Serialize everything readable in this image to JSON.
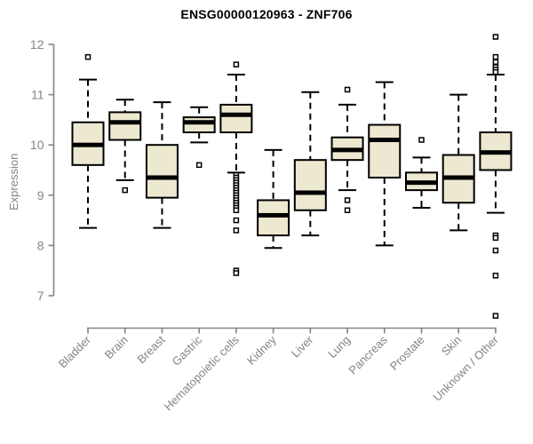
{
  "chart_data": {
    "type": "boxplot",
    "title": "ENSG00000120963 - ZNF706",
    "ylabel": "Expression",
    "xlabel": "",
    "yticks": [
      7,
      8,
      9,
      10,
      11,
      12
    ],
    "ylim": [
      7,
      12
    ],
    "grid": false,
    "legend": "none",
    "categories": [
      "Bladder",
      "Brain",
      "Breast",
      "Gastric",
      "Hematopoietic cells",
      "Kidney",
      "Liver",
      "Lung",
      "Pancreas",
      "Prostate",
      "Skin",
      "Unknown / Other"
    ],
    "boxes": [
      {
        "category": "Bladder",
        "low": 8.35,
        "q1": 9.6,
        "median": 10.0,
        "q3": 10.45,
        "high": 11.3,
        "outliers": [
          11.75
        ]
      },
      {
        "category": "Brain",
        "low": 9.3,
        "q1": 10.1,
        "median": 10.45,
        "q3": 10.65,
        "high": 10.9,
        "outliers": [
          9.1
        ]
      },
      {
        "category": "Breast",
        "low": 8.35,
        "q1": 8.95,
        "median": 9.35,
        "q3": 10.0,
        "high": 10.85,
        "outliers": []
      },
      {
        "category": "Gastric",
        "low": 10.05,
        "q1": 10.25,
        "median": 10.45,
        "q3": 10.55,
        "high": 10.75,
        "outliers": [
          9.6
        ]
      },
      {
        "category": "Hematopoietic cells",
        "low": 9.45,
        "q1": 10.25,
        "median": 10.6,
        "q3": 10.8,
        "high": 11.4,
        "outliers": [
          11.6,
          9.4,
          9.35,
          9.3,
          9.25,
          9.2,
          9.15,
          9.1,
          9.05,
          9.0,
          8.95,
          8.9,
          8.85,
          8.8,
          8.75,
          8.7,
          8.5,
          8.3,
          7.5,
          7.45
        ]
      },
      {
        "category": "Kidney",
        "low": 7.95,
        "q1": 8.2,
        "median": 8.6,
        "q3": 8.9,
        "high": 9.9,
        "outliers": []
      },
      {
        "category": "Liver",
        "low": 8.2,
        "q1": 8.7,
        "median": 9.05,
        "q3": 9.7,
        "high": 11.05,
        "outliers": []
      },
      {
        "category": "Lung",
        "low": 9.1,
        "q1": 9.7,
        "median": 9.9,
        "q3": 10.15,
        "high": 10.8,
        "outliers": [
          11.1,
          8.9,
          8.7
        ]
      },
      {
        "category": "Pancreas",
        "low": 8.0,
        "q1": 9.35,
        "median": 10.1,
        "q3": 10.4,
        "high": 11.25,
        "outliers": []
      },
      {
        "category": "Prostate",
        "low": 8.75,
        "q1": 9.1,
        "median": 9.25,
        "q3": 9.45,
        "high": 9.75,
        "outliers": [
          10.1
        ]
      },
      {
        "category": "Skin",
        "low": 8.3,
        "q1": 8.85,
        "median": 9.35,
        "q3": 9.8,
        "high": 11.0,
        "outliers": []
      },
      {
        "category": "Unknown / Other",
        "low": 8.65,
        "q1": 9.5,
        "median": 9.85,
        "q3": 10.25,
        "high": 11.4,
        "outliers": [
          12.15,
          11.75,
          11.65,
          11.55,
          11.5,
          11.45,
          8.2,
          8.15,
          7.9,
          7.4,
          6.6
        ]
      }
    ],
    "colors": {
      "box_fill": "#EDE8D0",
      "box_border": "#000000",
      "median": "#000000",
      "whisker": "#000000",
      "outlier_fill": "#ffffff",
      "outlier_border": "#000000",
      "axis": "#848484",
      "tick_label": "#848484",
      "title": "#000000",
      "background": "#ffffff"
    }
  }
}
